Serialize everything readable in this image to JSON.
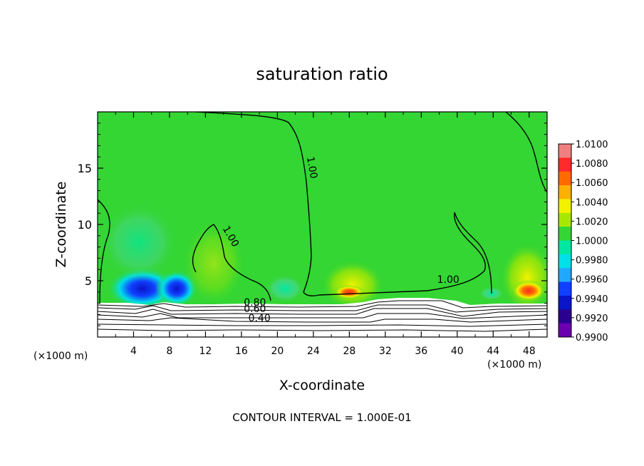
{
  "chart_data": {
    "type": "heatmap",
    "title": "saturation ratio",
    "xlabel": "X-coordinate",
    "ylabel": "Z-coordinate",
    "x_unit": "(×1000 m)",
    "xlim": [
      0,
      50
    ],
    "ylim": [
      0,
      20
    ],
    "x_ticks": [
      "4",
      "8",
      "12",
      "16",
      "20",
      "24",
      "28",
      "32",
      "36",
      "40",
      "44",
      "48"
    ],
    "y_ticks": [
      "5",
      "10",
      "15"
    ],
    "footer": "CONTOUR INTERVAL = 1.000E-01",
    "colorbar": {
      "labels": [
        "1.0100",
        "1.0080",
        "1.0060",
        "1.0040",
        "1.0020",
        "1.0000",
        "0.9980",
        "0.9960",
        "0.9940",
        "0.9920",
        "0.9900"
      ],
      "colors": [
        "#f08080",
        "#ff2a2a",
        "#ff6a00",
        "#ffb000",
        "#f2f200",
        "#a8e800",
        "#33d633",
        "#00e8a0",
        "#00e0e8",
        "#20a8ff",
        "#1040ff",
        "#0a14c8",
        "#2a0090",
        "#6a00b0"
      ]
    },
    "contour_labels": [
      {
        "text": "1.00",
        "x": 23.5,
        "z": 15.0
      },
      {
        "text": "1.00",
        "x": 14.5,
        "z": 8.8
      },
      {
        "text": "1.00",
        "x": 39.0,
        "z": 4.8
      },
      {
        "text": "0.80",
        "x": 17.5,
        "z": 2.8
      },
      {
        "text": "0.60",
        "x": 17.5,
        "z": 2.2
      },
      {
        "text": "0.40",
        "x": 18.0,
        "z": 1.4
      }
    ],
    "contour_levels_shown": [
      0.4,
      0.6,
      0.8,
      1.0
    ]
  }
}
